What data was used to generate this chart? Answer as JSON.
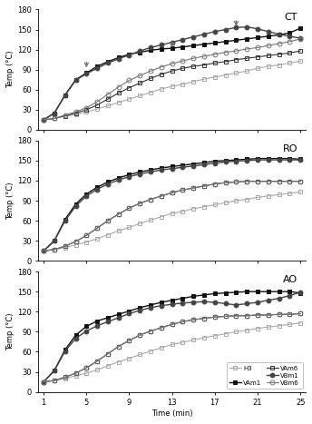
{
  "time": [
    1,
    2,
    3,
    4,
    5,
    6,
    7,
    8,
    9,
    10,
    11,
    12,
    13,
    14,
    15,
    16,
    17,
    18,
    19,
    20,
    21,
    22,
    23,
    24,
    25
  ],
  "CT": {
    "H3": [
      15,
      17,
      20,
      23,
      27,
      31,
      36,
      41,
      46,
      51,
      56,
      61,
      65,
      68,
      72,
      76,
      79,
      82,
      85,
      88,
      92,
      95,
      97,
      100,
      103
    ],
    "VAm1": [
      15,
      25,
      52,
      75,
      85,
      95,
      102,
      108,
      113,
      116,
      119,
      121,
      122,
      124,
      126,
      128,
      130,
      132,
      134,
      136,
      138,
      140,
      142,
      145,
      152
    ],
    "VAm6": [
      15,
      17,
      21,
      25,
      30,
      37,
      46,
      55,
      63,
      70,
      77,
      83,
      88,
      92,
      95,
      97,
      100,
      102,
      105,
      107,
      109,
      111,
      113,
      115,
      118
    ],
    "VBm1": [
      15,
      25,
      52,
      74,
      84,
      92,
      100,
      106,
      112,
      118,
      123,
      127,
      131,
      135,
      139,
      143,
      147,
      150,
      153,
      154,
      151,
      147,
      143,
      140,
      137
    ],
    "VBm6": [
      15,
      17,
      22,
      27,
      33,
      42,
      53,
      64,
      74,
      81,
      88,
      94,
      99,
      103,
      107,
      110,
      113,
      116,
      118,
      121,
      123,
      126,
      129,
      132,
      136
    ]
  },
  "RO": {
    "H3": [
      15,
      17,
      20,
      24,
      28,
      33,
      39,
      45,
      50,
      56,
      61,
      66,
      71,
      74,
      78,
      81,
      84,
      87,
      90,
      92,
      95,
      97,
      99,
      101,
      103
    ],
    "VAm1": [
      15,
      30,
      62,
      85,
      100,
      110,
      118,
      124,
      129,
      133,
      136,
      139,
      141,
      143,
      145,
      147,
      149,
      150,
      151,
      152,
      153,
      153,
      153,
      153,
      152
    ],
    "VAm6": [
      15,
      17,
      22,
      29,
      38,
      49,
      60,
      70,
      79,
      86,
      92,
      97,
      102,
      106,
      109,
      112,
      115,
      117,
      118,
      119,
      119,
      119,
      119,
      119,
      119
    ],
    "VBm1": [
      15,
      30,
      60,
      82,
      97,
      107,
      115,
      121,
      126,
      130,
      133,
      136,
      138,
      140,
      142,
      144,
      146,
      148,
      149,
      150,
      151,
      151,
      151,
      151,
      151
    ],
    "VBm6": [
      15,
      17,
      22,
      29,
      38,
      49,
      60,
      70,
      79,
      86,
      92,
      97,
      102,
      106,
      109,
      112,
      115,
      117,
      118,
      119,
      119,
      119,
      119,
      119,
      119
    ]
  },
  "AO": {
    "H3": [
      15,
      17,
      20,
      24,
      28,
      33,
      39,
      45,
      50,
      56,
      61,
      66,
      71,
      74,
      78,
      81,
      84,
      87,
      90,
      92,
      95,
      97,
      99,
      101,
      103
    ],
    "VAm1": [
      15,
      32,
      63,
      85,
      98,
      106,
      111,
      116,
      121,
      126,
      130,
      134,
      137,
      140,
      143,
      145,
      147,
      148,
      149,
      150,
      150,
      150,
      150,
      150,
      148
    ],
    "VAm6": [
      15,
      17,
      22,
      28,
      36,
      46,
      57,
      68,
      77,
      85,
      91,
      96,
      101,
      105,
      108,
      110,
      112,
      113,
      114,
      114,
      115,
      115,
      116,
      116,
      117
    ],
    "VBm1": [
      15,
      32,
      61,
      80,
      91,
      99,
      105,
      111,
      117,
      122,
      126,
      129,
      131,
      133,
      134,
      135,
      134,
      132,
      130,
      132,
      134,
      137,
      140,
      144,
      149
    ],
    "VBm6": [
      15,
      17,
      22,
      28,
      36,
      46,
      57,
      68,
      77,
      85,
      91,
      96,
      101,
      105,
      108,
      110,
      112,
      113,
      114,
      114,
      115,
      115,
      116,
      116,
      117
    ]
  },
  "panels": [
    "CT",
    "RO",
    "AO"
  ],
  "ylim": [
    0,
    180
  ],
  "yticks": [
    0,
    30,
    60,
    90,
    120,
    150,
    180
  ],
  "xticks": [
    1,
    5,
    9,
    13,
    17,
    21,
    25
  ],
  "xlabel": "Time (min)",
  "ylabel": "Temp (°C)"
}
